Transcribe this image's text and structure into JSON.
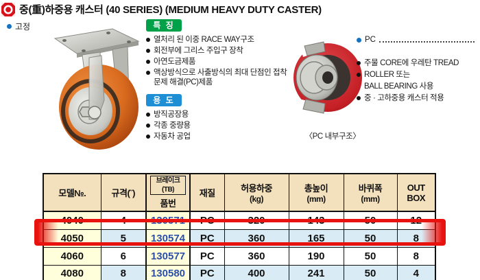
{
  "header": {
    "logo": "brand-mark",
    "title": "중(重)하중용 캐스터 (40 SERIES)  (MEDIUM HEAVY DUTY CASTER)"
  },
  "left_section": {
    "mount_label": "고정",
    "image_caption": "fixed-plate-caster-photo"
  },
  "features": {
    "badge": "특 징",
    "items": [
      "열처리 된 이중 RACE WAY구조",
      "회전부에 그리스 주입구 장착",
      "아연도금제품",
      "액상방식으로 사출방식의 최대 단점인 접착문제 해결(PC)제품"
    ]
  },
  "uses": {
    "badge": "용 도",
    "items": [
      "방직공장용",
      "각종 중량용",
      "자동차 공업"
    ]
  },
  "diagram": {
    "pc_label": "PC",
    "labels": [
      "주물 CORE에 우레탄 TREAD",
      "ROLLER 또는",
      "BALL BEARING 사용",
      "중 · 고하중용 캐스터 적용"
    ],
    "caption": "〈PC 내부구조〉"
  },
  "table": {
    "headers": {
      "model": "모델№.",
      "size": "규격(˝)",
      "brake": "브레이크(TB)",
      "part": "품번",
      "material": "재질",
      "load": "허용하중",
      "load_unit": "(kg)",
      "height": "총높이",
      "height_unit": "(mm)",
      "width": "바퀴폭",
      "width_unit": "(mm)",
      "out1": "OUT",
      "out2": "BOX"
    },
    "rows": [
      [
        "4040",
        "4",
        "130571",
        "PC",
        "320",
        "143",
        "50",
        "12"
      ],
      [
        "4050",
        "5",
        "130574",
        "PC",
        "360",
        "165",
        "50",
        "8"
      ],
      [
        "4060",
        "6",
        "130577",
        "PC",
        "360",
        "190",
        "50",
        "8"
      ],
      [
        "4080",
        "8",
        "130580",
        "PC",
        "400",
        "241",
        "50",
        "4"
      ]
    ],
    "highlighted_row": "4050"
  },
  "colors": {
    "highlight_red": "#e8120e",
    "badge_green": "#00a148",
    "badge_blue": "#1e8fd5",
    "header_tan": "#f3e0bc",
    "row_yellow": "#ffffdc",
    "row_blue": "#d9ecf5",
    "part_number_blue": "#2b4fa8",
    "logo_red": "#d8121c",
    "wheel_orange": "#d86a1e",
    "tread_red": "#c41f25"
  }
}
